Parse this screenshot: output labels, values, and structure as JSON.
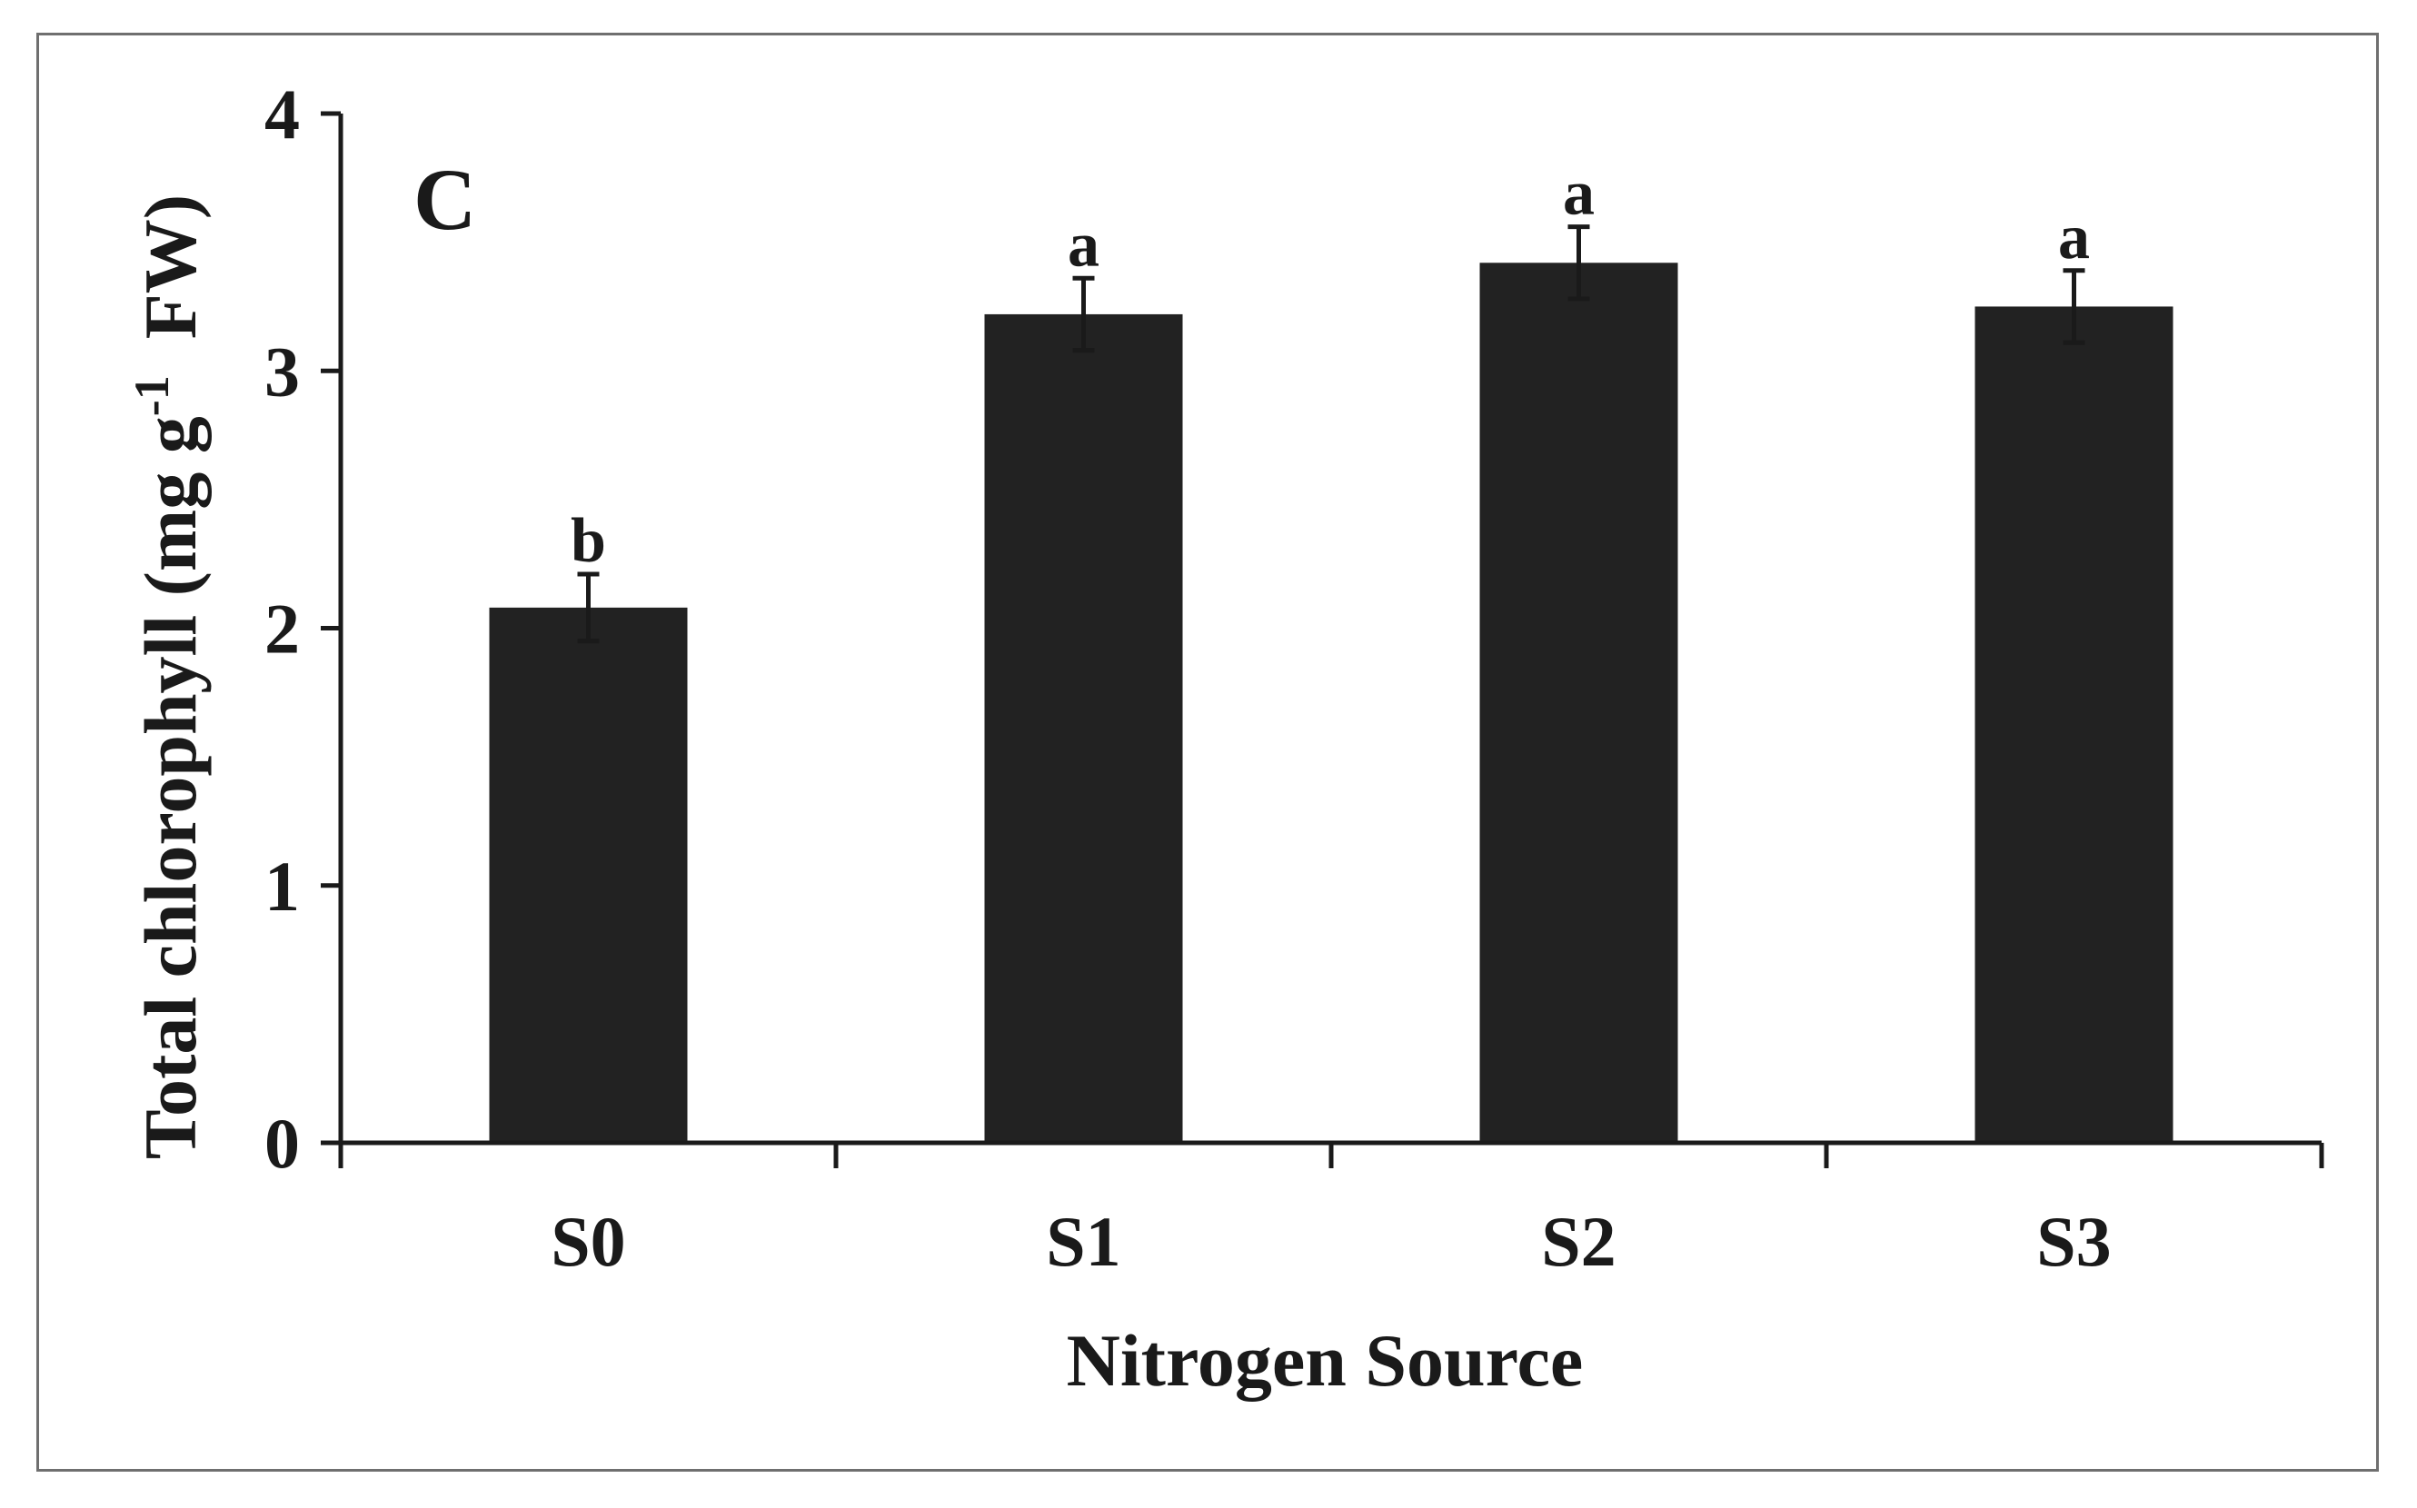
{
  "chart_data": {
    "type": "bar",
    "panel_label": "C",
    "title": "",
    "xlabel": "Nitrogen Source",
    "ylabel": {
      "prefix": "Total chlorophyll (mg g",
      "superscript": "-1",
      "suffix": "FW)"
    },
    "categories": [
      "S0",
      "S1",
      "S2",
      "S3"
    ],
    "series": [
      {
        "values": [
          2.08,
          3.22,
          3.42,
          3.25
        ],
        "errors": [
          0.13,
          0.14,
          0.14,
          0.14
        ],
        "significance": [
          "b",
          "a",
          "a",
          "a"
        ],
        "color": "#222222"
      }
    ],
    "ylim": [
      0,
      4
    ],
    "yticks": [
      0,
      1,
      2,
      3,
      4
    ],
    "grid": false,
    "legend": "none"
  }
}
